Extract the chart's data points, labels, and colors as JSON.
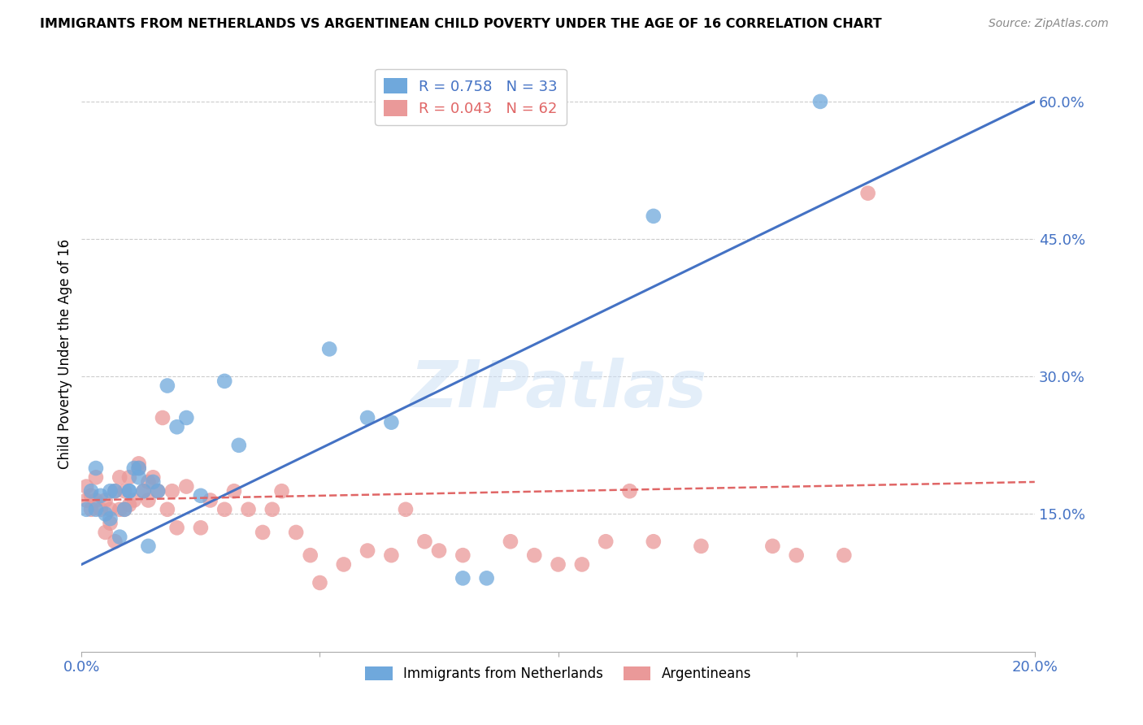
{
  "title": "IMMIGRANTS FROM NETHERLANDS VS ARGENTINEAN CHILD POVERTY UNDER THE AGE OF 16 CORRELATION CHART",
  "source": "Source: ZipAtlas.com",
  "ylabel": "Child Poverty Under the Age of 16",
  "xlim": [
    0.0,
    0.2
  ],
  "ylim": [
    0.0,
    0.65
  ],
  "yticks": [
    0.15,
    0.3,
    0.45,
    0.6
  ],
  "ytick_labels": [
    "15.0%",
    "30.0%",
    "45.0%",
    "60.0%"
  ],
  "xticks": [
    0.0,
    0.05,
    0.1,
    0.15,
    0.2
  ],
  "xtick_labels": [
    "0.0%",
    "",
    "",
    "",
    "20.0%"
  ],
  "blue_R": 0.758,
  "blue_N": 33,
  "pink_R": 0.043,
  "pink_N": 62,
  "blue_color": "#6fa8dc",
  "pink_color": "#ea9999",
  "blue_line_color": "#4472c4",
  "pink_line_color": "#e06666",
  "axis_color": "#4472c4",
  "watermark": "ZIPatlas",
  "blue_line_x": [
    0.0,
    0.2
  ],
  "blue_line_y": [
    0.095,
    0.6
  ],
  "pink_line_x": [
    0.0,
    0.2
  ],
  "pink_line_y": [
    0.165,
    0.185
  ],
  "blue_scatter_x": [
    0.001,
    0.002,
    0.003,
    0.003,
    0.004,
    0.005,
    0.006,
    0.006,
    0.007,
    0.008,
    0.009,
    0.01,
    0.01,
    0.011,
    0.012,
    0.012,
    0.013,
    0.014,
    0.015,
    0.016,
    0.018,
    0.02,
    0.022,
    0.025,
    0.03,
    0.033,
    0.052,
    0.06,
    0.065,
    0.08,
    0.085,
    0.12,
    0.155
  ],
  "blue_scatter_y": [
    0.155,
    0.175,
    0.155,
    0.2,
    0.17,
    0.15,
    0.145,
    0.175,
    0.175,
    0.125,
    0.155,
    0.175,
    0.175,
    0.2,
    0.2,
    0.19,
    0.175,
    0.115,
    0.185,
    0.175,
    0.29,
    0.245,
    0.255,
    0.17,
    0.295,
    0.225,
    0.33,
    0.255,
    0.25,
    0.08,
    0.08,
    0.475,
    0.6
  ],
  "pink_scatter_x": [
    0.001,
    0.001,
    0.002,
    0.002,
    0.003,
    0.003,
    0.004,
    0.005,
    0.005,
    0.006,
    0.006,
    0.007,
    0.007,
    0.008,
    0.008,
    0.009,
    0.009,
    0.01,
    0.01,
    0.011,
    0.012,
    0.012,
    0.013,
    0.014,
    0.014,
    0.015,
    0.016,
    0.017,
    0.018,
    0.019,
    0.02,
    0.022,
    0.025,
    0.027,
    0.03,
    0.032,
    0.035,
    0.038,
    0.04,
    0.042,
    0.045,
    0.048,
    0.05,
    0.055,
    0.06,
    0.065,
    0.068,
    0.072,
    0.075,
    0.08,
    0.09,
    0.095,
    0.1,
    0.105,
    0.11,
    0.115,
    0.12,
    0.13,
    0.145,
    0.15,
    0.16,
    0.165
  ],
  "pink_scatter_y": [
    0.165,
    0.18,
    0.155,
    0.17,
    0.165,
    0.19,
    0.155,
    0.13,
    0.165,
    0.14,
    0.155,
    0.12,
    0.175,
    0.155,
    0.19,
    0.155,
    0.175,
    0.16,
    0.19,
    0.165,
    0.2,
    0.205,
    0.175,
    0.185,
    0.165,
    0.19,
    0.175,
    0.255,
    0.155,
    0.175,
    0.135,
    0.18,
    0.135,
    0.165,
    0.155,
    0.175,
    0.155,
    0.13,
    0.155,
    0.175,
    0.13,
    0.105,
    0.075,
    0.095,
    0.11,
    0.105,
    0.155,
    0.12,
    0.11,
    0.105,
    0.12,
    0.105,
    0.095,
    0.095,
    0.12,
    0.175,
    0.12,
    0.115,
    0.115,
    0.105,
    0.105,
    0.5
  ]
}
